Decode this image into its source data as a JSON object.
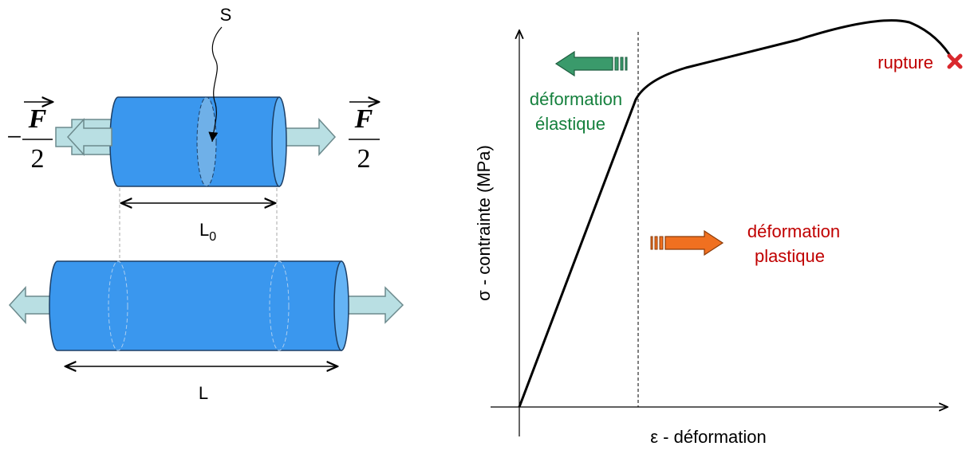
{
  "specimen": {
    "section_label": "S",
    "force_left": {
      "sign": "−",
      "numerator": "F",
      "denominator": "2"
    },
    "force_right": {
      "numerator": "F",
      "denominator": "2"
    },
    "initial_length": {
      "base": "L",
      "subscript": "0"
    },
    "final_length": "L"
  },
  "graph": {
    "y_axis_label": "σ - contrainte (MPa)",
    "x_axis_label": "ε - déformation",
    "elastic_label": [
      "déformation",
      "élastique"
    ],
    "plastic_label": [
      "déformation",
      "plastique"
    ],
    "rupture_label": "rupture"
  }
}
